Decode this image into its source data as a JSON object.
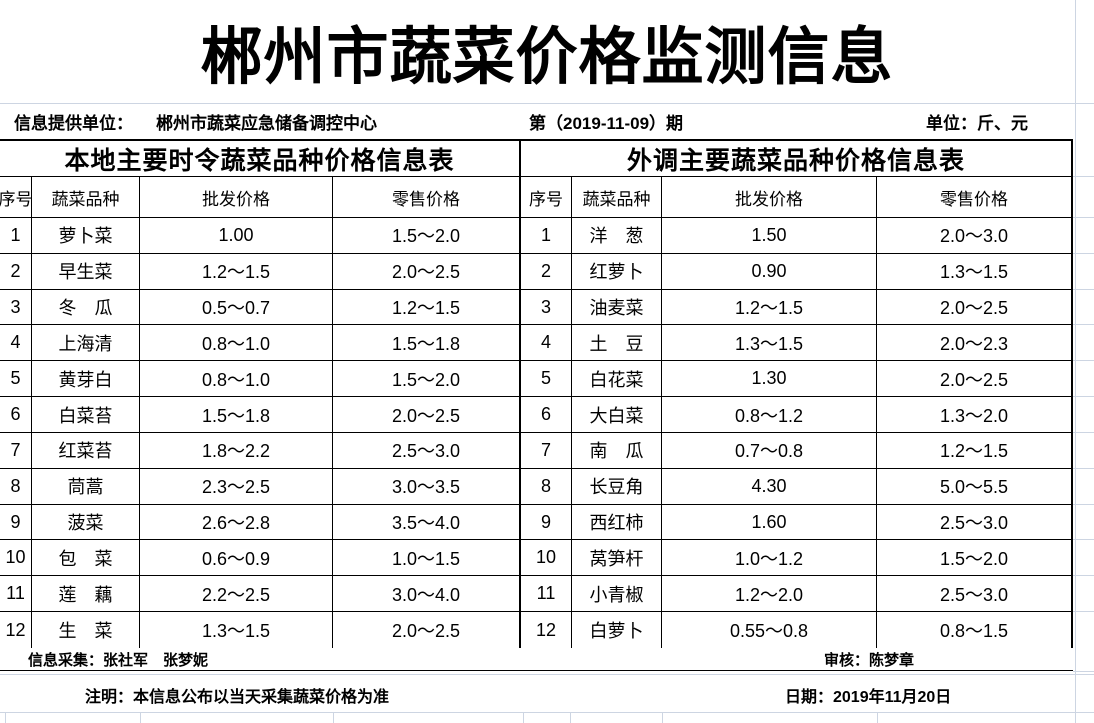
{
  "title": "郴州市蔬菜价格监测信息",
  "meta": {
    "provider_label": "信息提供单位：",
    "provider": "郴州市蔬菜应急储备调控中心",
    "issue": "第（2019-11-09）期",
    "unit": "单位：斤、元"
  },
  "tables": [
    {
      "title": "本地主要时令蔬菜品种价格信息表",
      "headers": [
        "序号",
        "蔬菜品种",
        "批发价格",
        "零售价格"
      ],
      "rows": [
        [
          "1",
          "萝卜菜",
          "1.00",
          "1.5～2.0"
        ],
        [
          "2",
          "早生菜",
          "1.2～1.5",
          "2.0～2.5"
        ],
        [
          "3",
          "冬　瓜",
          "0.5～0.7",
          "1.2～1.5"
        ],
        [
          "4",
          "上海清",
          "0.8～1.0",
          "1.5～1.8"
        ],
        [
          "5",
          "黄芽白",
          "0.8～1.0",
          "1.5～2.0"
        ],
        [
          "6",
          "白菜苔",
          "1.5～1.8",
          "2.0～2.5"
        ],
        [
          "7",
          "红菜苔",
          "1.8～2.2",
          "2.5～3.0"
        ],
        [
          "8",
          "茼蒿",
          "2.3～2.5",
          "3.0～3.5"
        ],
        [
          "9",
          "菠菜",
          "2.6～2.8",
          "3.5～4.0"
        ],
        [
          "10",
          "包　菜",
          "0.6～0.9",
          "1.0～1.5"
        ],
        [
          "11",
          "莲　藕",
          "2.2～2.5",
          "3.0～4.0"
        ],
        [
          "12",
          "生　菜",
          "1.3～1.5",
          "2.0～2.5"
        ]
      ]
    },
    {
      "title": "外调主要蔬菜品种价格信息表",
      "headers": [
        "序号",
        "蔬菜品种",
        "批发价格",
        "零售价格"
      ],
      "rows": [
        [
          "1",
          "洋　葱",
          "1.50",
          "2.0～3.0"
        ],
        [
          "2",
          "红萝卜",
          "0.90",
          "1.3～1.5"
        ],
        [
          "3",
          "油麦菜",
          "1.2～1.5",
          "2.0～2.5"
        ],
        [
          "4",
          "土　豆",
          "1.3～1.5",
          "2.0～2.3"
        ],
        [
          "5",
          "白花菜",
          "1.30",
          "2.0～2.5"
        ],
        [
          "6",
          "大白菜",
          "0.8～1.2",
          "1.3～2.0"
        ],
        [
          "7",
          "南　瓜",
          "0.7～0.8",
          "1.2～1.5"
        ],
        [
          "8",
          "长豆角",
          "4.30",
          "5.0～5.5"
        ],
        [
          "9",
          "西红柿",
          "1.60",
          "2.5～3.0"
        ],
        [
          "10",
          "莴笋杆",
          "1.0～1.2",
          "1.5～2.0"
        ],
        [
          "11",
          "小青椒",
          "1.2～2.0",
          "2.5～3.0"
        ],
        [
          "12",
          "白萝卜",
          "0.55～0.8",
          "0.8～1.5"
        ]
      ]
    }
  ],
  "footer": {
    "collect": "信息采集：张社军　张梦妮",
    "review": "审核：陈梦章",
    "note": "注明：本信息公布以当天采集蔬菜价格为准",
    "date": "日期：2019年11月20日"
  },
  "colors": {
    "gridline": "#cdd5e2",
    "table_border": "#000000"
  }
}
